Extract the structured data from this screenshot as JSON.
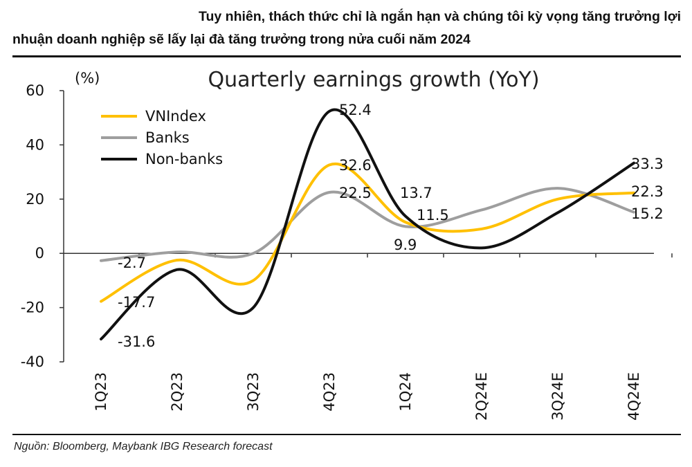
{
  "heading": {
    "line1": "Tuy nhiên, thách thức chỉ là ngắn hạn và chúng tôi kỳ vọng tăng trưởng lợi",
    "line2": "nhuận doanh nghiệp sẽ lấy lại đà tăng trưởng trong nửa cuối năm 2024"
  },
  "source": "Nguồn: Bloomberg, Maybank IBG Research forecast",
  "chart_data": {
    "type": "line",
    "title": "Quarterly earnings growth (YoY)",
    "ylabel": "(%)",
    "xlabel": "",
    "categories": [
      "1Q23",
      "2Q23",
      "3Q23",
      "4Q23",
      "1Q24",
      "2Q24E",
      "3Q24E",
      "4Q24E"
    ],
    "ylim": [
      -40,
      60
    ],
    "yticks": [
      "60",
      "40",
      "20",
      "0",
      "-20",
      "-40"
    ],
    "grid": false,
    "legend": "top-left",
    "series": [
      {
        "name": "VNIndex",
        "color": "#FFC000",
        "values": [
          -17.7,
          -2.5,
          -10,
          32.6,
          11.5,
          9,
          20,
          22.3
        ]
      },
      {
        "name": "Banks",
        "color": "#9E9E9E",
        "values": [
          -2.7,
          0.5,
          0,
          22.5,
          9.9,
          16,
          24,
          15.2
        ]
      },
      {
        "name": "Non-banks",
        "color": "#111111",
        "values": [
          -31.6,
          -6,
          -20,
          52.4,
          13.7,
          2,
          15,
          33.3
        ]
      }
    ],
    "data_labels": [
      "-2.7",
      "-17.7",
      "-31.6",
      "52.4",
      "32.6",
      "22.5",
      "13.7",
      "11.5",
      "9.9",
      "33.3",
      "22.3",
      "15.2"
    ]
  }
}
